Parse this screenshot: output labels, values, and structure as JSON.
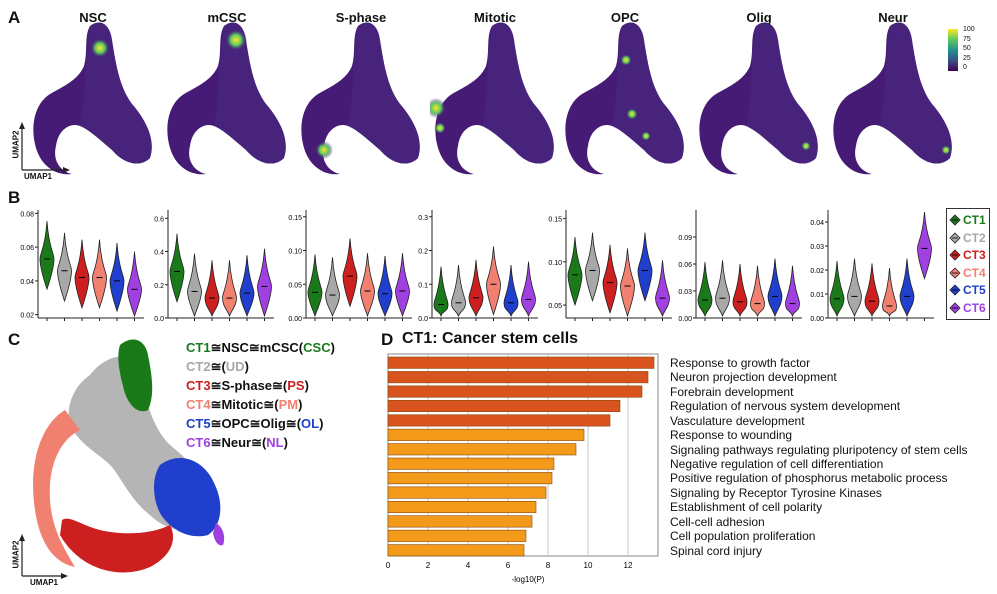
{
  "panels": {
    "a": "A",
    "b": "B",
    "c": "C",
    "d": "D"
  },
  "umap": {
    "titles": [
      "NSC",
      "mCSC",
      "S-phase",
      "Mitotic",
      "OPC",
      "Olig",
      "Neur"
    ],
    "axis_x": "UMAP1",
    "axis_y": "UMAP2",
    "colorbar_ticks": [
      "100",
      "75",
      "50",
      "25",
      "0"
    ],
    "colors": {
      "low": "#3b0f6f",
      "mid": "#21918c",
      "high": "#fde725"
    }
  },
  "violin": {
    "groups": [
      "CT1",
      "CT2",
      "CT3",
      "CT4",
      "CT5",
      "CT6"
    ],
    "colors": [
      "#1a7a1a",
      "#a8a8a8",
      "#cc1f1f",
      "#f08070",
      "#1f3fcc",
      "#a040e0"
    ],
    "legend_title_colors": [
      "#1a7a1a",
      "#a8a8a8",
      "#cc1f1f",
      "#f08070",
      "#1f3fcc",
      "#a040e0"
    ]
  },
  "chart_data": [
    {
      "type": "violin",
      "title": "NSC",
      "groups": [
        "CT1",
        "CT2",
        "CT3",
        "CT4",
        "CT5",
        "CT6"
      ],
      "medians": [
        0.053,
        0.046,
        0.042,
        0.042,
        0.04,
        0.035
      ],
      "ylim": [
        0.018,
        0.082
      ],
      "yticks": [
        "0.02",
        "0.04",
        "0.06",
        "0.08"
      ]
    },
    {
      "type": "violin",
      "title": "mCSC",
      "groups": [
        "CT1",
        "CT2",
        "CT3",
        "CT4",
        "CT5",
        "CT6"
      ],
      "medians": [
        0.28,
        0.16,
        0.12,
        0.12,
        0.15,
        0.19
      ],
      "ylim": [
        0.0,
        0.65
      ],
      "yticks": [
        "0.0",
        "0.2",
        "0.4",
        "0.6"
      ]
    },
    {
      "type": "violin",
      "title": "S-phase",
      "groups": [
        "CT1",
        "CT2",
        "CT3",
        "CT4",
        "CT5",
        "CT6"
      ],
      "medians": [
        0.038,
        0.034,
        0.062,
        0.04,
        0.036,
        0.04
      ],
      "ylim": [
        0.0,
        0.16
      ],
      "yticks": [
        "0.00",
        "0.05",
        "0.10",
        "0.15"
      ]
    },
    {
      "type": "violin",
      "title": "Mitotic",
      "groups": [
        "CT1",
        "CT2",
        "CT3",
        "CT4",
        "CT5",
        "CT6"
      ],
      "medians": [
        0.04,
        0.045,
        0.06,
        0.1,
        0.045,
        0.055
      ],
      "ylim": [
        0.0,
        0.32
      ],
      "yticks": [
        "0.0",
        "0.1",
        "0.2",
        "0.3"
      ]
    },
    {
      "type": "violin",
      "title": "OPC",
      "groups": [
        "CT1",
        "CT2",
        "CT3",
        "CT4",
        "CT5",
        "CT6"
      ],
      "medians": [
        0.085,
        0.09,
        0.076,
        0.072,
        0.09,
        0.058
      ],
      "ylim": [
        0.035,
        0.16
      ],
      "yticks": [
        "0.05",
        "0.10",
        "0.15"
      ]
    },
    {
      "type": "violin",
      "title": "Olig",
      "groups": [
        "CT1",
        "CT2",
        "CT3",
        "CT4",
        "CT5",
        "CT6"
      ],
      "medians": [
        0.02,
        0.022,
        0.018,
        0.016,
        0.024,
        0.016
      ],
      "ylim": [
        0.0,
        0.12
      ],
      "yticks": [
        "0.00",
        "0.03",
        "0.06",
        "0.09"
      ]
    },
    {
      "type": "violin",
      "title": "Neur",
      "groups": [
        "CT1",
        "CT2",
        "CT3",
        "CT4",
        "CT5",
        "CT6"
      ],
      "medians": [
        0.008,
        0.009,
        0.007,
        0.005,
        0.009,
        0.029
      ],
      "ylim": [
        0.0,
        0.045
      ],
      "yticks": [
        "0.00",
        "0.01",
        "0.02",
        "0.03",
        "0.04"
      ]
    },
    {
      "type": "bar",
      "orientation": "horizontal",
      "title": "CT1: Cancer stem cells",
      "categories": [
        "Response to growth factor",
        "Neuron projection development",
        "Forebrain development",
        "Regulation of nervous system development",
        "Vasculature development",
        "Response to wounding",
        "Signaling pathways regulating pluripotency of stem cells",
        "Negative regulation of cell differentiation",
        "Positive regulation of phosphorus metabolic process",
        "Signaling by Receptor Tyrosine Kinases",
        "Establishment of cell polarity",
        "Cell-cell adhesion",
        "Cell population proliferation",
        "Spinal cord injury"
      ],
      "values": [
        13.3,
        13.0,
        12.7,
        11.6,
        11.1,
        9.8,
        9.4,
        8.3,
        8.2,
        7.9,
        7.4,
        7.2,
        6.9,
        6.8
      ],
      "bar_colors": [
        "#d9531e",
        "#d9531e",
        "#d9531e",
        "#d9531e",
        "#d9531e",
        "#f39a1a",
        "#f39a1a",
        "#f39a1a",
        "#f39a1a",
        "#f39a1a",
        "#f39a1a",
        "#f39a1a",
        "#f39a1a",
        "#f39a1a"
      ],
      "xlabel": "-log10(P)",
      "xticks": [
        "0",
        "2",
        "4",
        "6",
        "8",
        "10",
        "12"
      ],
      "xlim": [
        0,
        13.5
      ]
    }
  ],
  "cell_types": [
    {
      "label": "CT1",
      "rest": "≅NSC≅mCSC(",
      "abbr": "CSC",
      "close": ")",
      "color": "#1a7a1a",
      "abbr_color": "#1a7a1a"
    },
    {
      "label": "CT2",
      "rest": "≅(",
      "abbr": "UD",
      "close": ")",
      "color": "#a8a8a8",
      "abbr_color": "#a8a8a8"
    },
    {
      "label": "CT3",
      "rest": "≅S-phase≅(",
      "abbr": "PS",
      "close": ")",
      "color": "#cc1f1f",
      "abbr_color": "#cc1f1f"
    },
    {
      "label": "CT4",
      "rest": "≅Mitotic≅(",
      "abbr": "PM",
      "close": ")",
      "color": "#f08070",
      "abbr_color": "#f08070"
    },
    {
      "label": "CT5",
      "rest": "≅OPC≅Olig≅(",
      "abbr": "OL",
      "close": ")",
      "color": "#1f3fcc",
      "abbr_color": "#1f3fcc"
    },
    {
      "label": "CT6",
      "rest": "≅Neur≅(",
      "abbr": "NL",
      "close": ")",
      "color": "#a040e0",
      "abbr_color": "#a040e0"
    }
  ]
}
